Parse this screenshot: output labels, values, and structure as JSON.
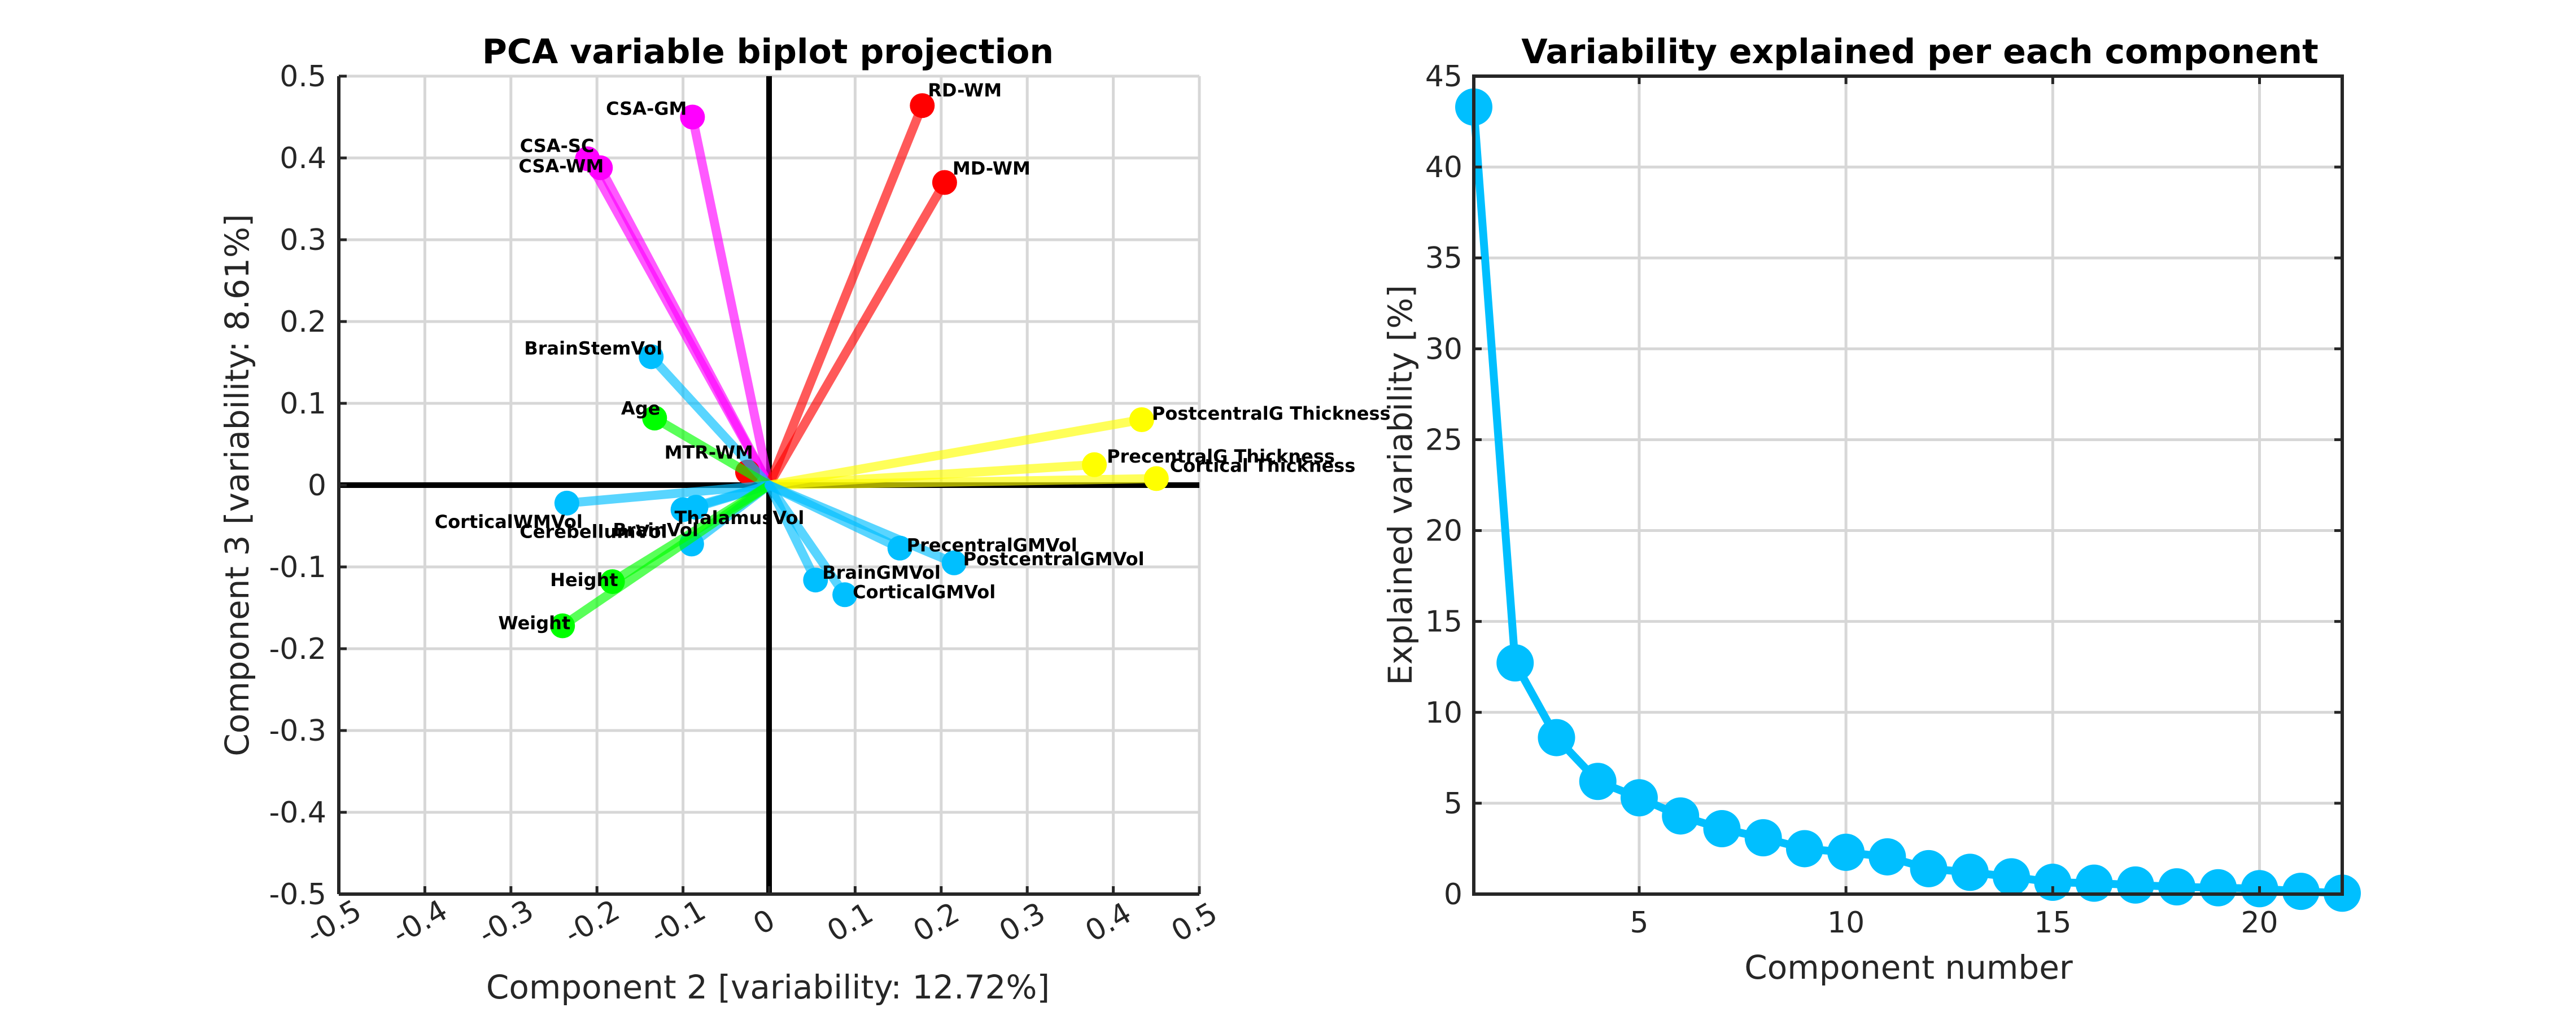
{
  "colors": {
    "blue": "#00BFFF",
    "red": "#FF0000",
    "magenta": "#FF00FF",
    "yellow": "#FFFF00",
    "green": "#00FF00",
    "scree": "#00BFFF"
  },
  "chart_data": [
    {
      "type": "scatter",
      "title": "PCA variable biplot projection",
      "xlabel": "Component 2 [variability: 12.72%]",
      "ylabel": "Component 3 [variability: 8.61%]",
      "xlim": [
        -0.5,
        0.5
      ],
      "ylim": [
        -0.5,
        0.5
      ],
      "xticks": [
        "-0.5",
        "-0.4",
        "-0.3",
        "-0.2",
        "-0.1",
        "0",
        "0.1",
        "0.2",
        "0.3",
        "0.4",
        "0.5"
      ],
      "yticks": [
        "0.5",
        "0.4",
        "0.3",
        "0.2",
        "0.1",
        "0",
        "-0.1",
        "-0.2",
        "-0.3",
        "-0.4",
        "-0.5"
      ],
      "grid": true,
      "vectors": [
        {
          "name": "CSA-GM",
          "x": -0.089,
          "y": 0.45,
          "color": "magenta"
        },
        {
          "name": "CSA-SC",
          "x": -0.211,
          "y": 0.399,
          "color": "magenta"
        },
        {
          "name": "CSA-WM",
          "x": -0.196,
          "y": 0.388,
          "color": "magenta"
        },
        {
          "name": "RD-WM",
          "x": 0.178,
          "y": 0.464,
          "color": "red"
        },
        {
          "name": "MD-WM",
          "x": 0.204,
          "y": 0.37,
          "color": "red"
        },
        {
          "name": "MTR-WM",
          "x": -0.025,
          "y": 0.016,
          "color": "red"
        },
        {
          "name": "BrainStemVol",
          "x": -0.137,
          "y": 0.157,
          "color": "blue"
        },
        {
          "name": "Age",
          "x": -0.133,
          "y": 0.082,
          "color": "green"
        },
        {
          "name": "PostcentralG Thickness",
          "x": 0.433,
          "y": 0.08,
          "color": "yellow"
        },
        {
          "name": "PrecentralG Thickness",
          "x": 0.378,
          "y": 0.025,
          "color": "yellow"
        },
        {
          "name": "Cortical Thickness",
          "x": 0.45,
          "y": 0.008,
          "color": "yellow"
        },
        {
          "name": "CorticalWMVol",
          "x": -0.235,
          "y": -0.022,
          "color": "blue"
        },
        {
          "name": "ThalamusVol",
          "x": -0.085,
          "y": -0.027,
          "color": "blue"
        },
        {
          "name": "CerebellumVol",
          "x": -0.1,
          "y": -0.03,
          "color": "blue"
        },
        {
          "name": "BrainVol",
          "x": -0.09,
          "y": -0.072,
          "color": "blue"
        },
        {
          "name": "Height",
          "x": -0.182,
          "y": -0.118,
          "color": "green"
        },
        {
          "name": "Weight",
          "x": -0.24,
          "y": -0.172,
          "color": "green"
        },
        {
          "name": "PrecentralGMVol",
          "x": 0.152,
          "y": -0.077,
          "color": "blue"
        },
        {
          "name": "PostcentralGMVol",
          "x": 0.215,
          "y": -0.095,
          "color": "blue"
        },
        {
          "name": "BrainGMVol",
          "x": 0.054,
          "y": -0.116,
          "color": "blue"
        },
        {
          "name": "CorticalGMVol",
          "x": 0.088,
          "y": -0.134,
          "color": "blue"
        }
      ]
    },
    {
      "type": "line",
      "title": "Variability explained per each component",
      "xlabel": "Component number",
      "ylabel": "Explained variability [%]",
      "xlim": [
        1,
        22
      ],
      "ylim": [
        0,
        45
      ],
      "xticks": [
        "5",
        "10",
        "15",
        "20"
      ],
      "yticks": [
        "0",
        "5",
        "10",
        "15",
        "20",
        "25",
        "30",
        "35",
        "40",
        "45"
      ],
      "grid": true,
      "x": [
        1,
        2,
        3,
        4,
        5,
        6,
        7,
        8,
        9,
        10,
        11,
        12,
        13,
        14,
        15,
        16,
        17,
        18,
        19,
        20,
        21,
        22
      ],
      "y": [
        43.3,
        12.72,
        8.61,
        6.2,
        5.3,
        4.3,
        3.6,
        3.1,
        2.5,
        2.3,
        2.05,
        1.4,
        1.2,
        0.95,
        0.65,
        0.6,
        0.5,
        0.4,
        0.35,
        0.3,
        0.15,
        0.05
      ]
    }
  ]
}
